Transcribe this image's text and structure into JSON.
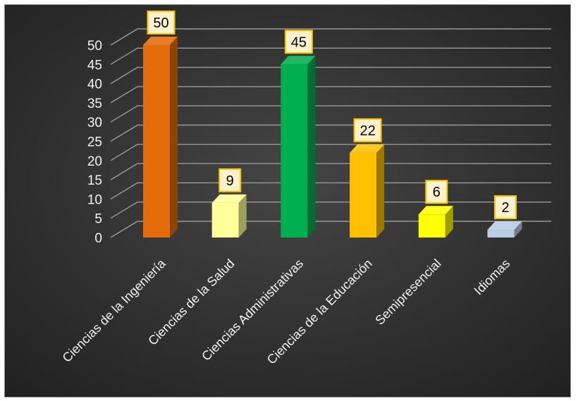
{
  "chart_data": {
    "type": "bar",
    "title": "",
    "xlabel": "",
    "ylabel": "",
    "categories": [
      "Ciencias de la Ingeniería",
      "Ciencias de la Salud",
      "Ciencias Administrativas",
      "Ciencias de la Educación",
      "Semipresencial",
      "Idiomas"
    ],
    "values": [
      50,
      9,
      45,
      22,
      6,
      2
    ],
    "ylim": [
      0,
      50
    ],
    "yticks": [
      0,
      5,
      10,
      15,
      20,
      25,
      30,
      35,
      40,
      45,
      50
    ],
    "grid": true,
    "legend": "none",
    "three_d": true,
    "colors": [
      "#e46c0a",
      "#ffff99",
      "#00b050",
      "#ffc000",
      "#ffff00",
      "#b9cde5"
    ],
    "background": "#303030",
    "label_box_fill": "#fff2cc",
    "label_box_border": "#ffc000"
  }
}
